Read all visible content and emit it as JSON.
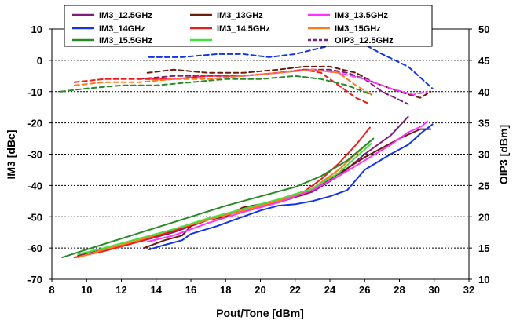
{
  "chart_data": {
    "type": "line",
    "xlabel": "Pout/Tone [dBm]",
    "ylabel": "IM3 [dBc]",
    "y2label": "OIP3 [dBm]",
    "xlim": [
      8,
      32
    ],
    "ylim": [
      -70,
      10
    ],
    "y2lim": [
      10,
      50
    ],
    "grid": true,
    "legend_position": "top",
    "xticks": [
      8,
      10,
      12,
      14,
      16,
      18,
      20,
      22,
      24,
      26,
      28,
      30,
      32
    ],
    "yticks": [
      10,
      0,
      -10,
      -20,
      -30,
      -40,
      -50,
      -60,
      -70
    ],
    "y2ticks": [
      50,
      45,
      40,
      35,
      30,
      25,
      20,
      15,
      10
    ],
    "legend": [
      {
        "label": "IM3_12.5GHz",
        "color": "#7b1f7b",
        "dashed": false
      },
      {
        "label": "IM3_13GHz",
        "color": "#6b1e0e",
        "dashed": false
      },
      {
        "label": "IM3_13.5GHz",
        "color": "#ff33ff",
        "dashed": false
      },
      {
        "label": "IM3_14GHz",
        "color": "#1434e6",
        "dashed": false
      },
      {
        "label": "IM3_14.5GHz",
        "color": "#ee1c1c",
        "dashed": false
      },
      {
        "label": "IM3_15GHz",
        "color": "#ff7b1c",
        "dashed": false
      },
      {
        "label": "IM3_15.5GHz",
        "color": "#2a8a2a",
        "dashed": false
      },
      {
        "label": "",
        "color": "#44e044",
        "dashed": false
      },
      {
        "label": "OIP3_12.5GHz",
        "color": "#7b1f7b",
        "dashed": true
      }
    ],
    "series": [
      {
        "name": "IM3_12.5GHz",
        "axis": "left",
        "dashed": false,
        "color": "#7b1f7b",
        "points": [
          [
            9.5,
            -62.5
          ],
          [
            11,
            -60.5
          ],
          [
            13,
            -58
          ],
          [
            15,
            -55
          ],
          [
            17,
            -51
          ],
          [
            19,
            -48
          ],
          [
            21,
            -45.5
          ],
          [
            23,
            -42
          ],
          [
            24.5,
            -37
          ],
          [
            26,
            -30
          ],
          [
            27.5,
            -24
          ],
          [
            28.5,
            -18
          ]
        ]
      },
      {
        "name": "IM3_13GHz",
        "axis": "left",
        "dashed": false,
        "color": "#6b1e0e",
        "points": [
          [
            13.3,
            -60
          ],
          [
            14.5,
            -57.5
          ],
          [
            15.5,
            -56
          ],
          [
            16,
            -53
          ],
          [
            17,
            -51
          ],
          [
            18,
            -50
          ],
          [
            19,
            -47
          ],
          [
            21,
            -45
          ],
          [
            22.5,
            -43
          ],
          [
            24,
            -38
          ],
          [
            26,
            -31
          ],
          [
            28,
            -25
          ],
          [
            29.2,
            -22
          ],
          [
            29.8,
            -22
          ]
        ]
      },
      {
        "name": "IM3_13.5GHz",
        "axis": "left",
        "dashed": false,
        "color": "#ff33ff",
        "points": [
          [
            13.5,
            -58
          ],
          [
            15,
            -56
          ],
          [
            17,
            -52
          ],
          [
            19,
            -48.5
          ],
          [
            21,
            -45.5
          ],
          [
            23,
            -41.5
          ],
          [
            24.5,
            -37
          ],
          [
            26,
            -32
          ],
          [
            27.5,
            -27
          ],
          [
            28.5,
            -23
          ],
          [
            29.3,
            -21
          ],
          [
            29.6,
            -19.5
          ]
        ]
      },
      {
        "name": "IM3_14GHz",
        "axis": "left",
        "dashed": false,
        "color": "#1434e6",
        "points": [
          [
            13.6,
            -60.5
          ],
          [
            14.5,
            -59
          ],
          [
            15.5,
            -57.5
          ],
          [
            16,
            -55.5
          ],
          [
            17.5,
            -53
          ],
          [
            18.5,
            -51
          ],
          [
            20,
            -48
          ],
          [
            21,
            -46.5
          ],
          [
            22,
            -46
          ],
          [
            23,
            -45
          ],
          [
            24,
            -43.5
          ],
          [
            25,
            -41.5
          ],
          [
            26,
            -35
          ],
          [
            27.5,
            -30
          ],
          [
            28.5,
            -27
          ],
          [
            29.3,
            -23
          ],
          [
            29.9,
            -20.5
          ]
        ]
      },
      {
        "name": "IM3_14.5GHz",
        "axis": "left",
        "dashed": false,
        "color": "#ee1c1c",
        "points": [
          [
            9.3,
            -63
          ],
          [
            11,
            -61
          ],
          [
            13,
            -58
          ],
          [
            15,
            -54.5
          ],
          [
            17,
            -51
          ],
          [
            19,
            -48
          ],
          [
            21,
            -45
          ],
          [
            22.5,
            -42
          ],
          [
            23.5,
            -38
          ],
          [
            24.5,
            -33
          ],
          [
            25.5,
            -27
          ],
          [
            26.3,
            -21.5
          ]
        ]
      },
      {
        "name": "IM3_15GHz",
        "axis": "left",
        "dashed": false,
        "color": "#ff7b1c",
        "points": [
          [
            9.5,
            -63
          ],
          [
            11,
            -60.5
          ],
          [
            13,
            -57.5
          ],
          [
            15,
            -54
          ],
          [
            17,
            -51
          ],
          [
            19,
            -48
          ],
          [
            21,
            -45
          ],
          [
            23,
            -41
          ],
          [
            24.5,
            -35
          ],
          [
            25.5,
            -30
          ],
          [
            26.4,
            -25.5
          ]
        ]
      },
      {
        "name": "IM3_15.5GHz",
        "axis": "left",
        "dashed": false,
        "color": "#2a8a2a",
        "points": [
          [
            8.6,
            -63
          ],
          [
            10,
            -60.5
          ],
          [
            12,
            -57
          ],
          [
            14,
            -53.5
          ],
          [
            16,
            -50
          ],
          [
            18,
            -46.5
          ],
          [
            20,
            -43.5
          ],
          [
            22,
            -40.5
          ],
          [
            23.5,
            -37
          ],
          [
            25,
            -32
          ],
          [
            26.5,
            -25
          ]
        ]
      },
      {
        "name": "",
        "axis": "left",
        "dashed": false,
        "color": "#44e044",
        "points": [
          [
            9.5,
            -62
          ],
          [
            11,
            -60
          ],
          [
            13,
            -57
          ],
          [
            15,
            -54
          ],
          [
            17,
            -50.5
          ],
          [
            19,
            -47.5
          ],
          [
            21,
            -44.5
          ],
          [
            23,
            -41
          ],
          [
            24.5,
            -36
          ],
          [
            25.5,
            -31
          ],
          [
            26.4,
            -26.5
          ]
        ]
      },
      {
        "name": "OIP3_12.5GHz",
        "axis": "right",
        "dashed": true,
        "color": "#7b1f7b",
        "points": [
          [
            13,
            42
          ],
          [
            15,
            42.5
          ],
          [
            17,
            42.5
          ],
          [
            19,
            42.5
          ],
          [
            21,
            43
          ],
          [
            22.5,
            43.5
          ],
          [
            24,
            43.5
          ],
          [
            25,
            43
          ],
          [
            26,
            42
          ],
          [
            27,
            40
          ],
          [
            28.5,
            38
          ]
        ]
      },
      {
        "name": "",
        "axis": "right",
        "dashed": true,
        "color": "#6b1e0e",
        "points": [
          [
            13.5,
            43
          ],
          [
            15,
            43.5
          ],
          [
            17,
            43
          ],
          [
            19,
            43
          ],
          [
            21,
            43.5
          ],
          [
            22.5,
            44
          ],
          [
            24,
            44
          ],
          [
            25.5,
            43
          ],
          [
            26.5,
            41.5
          ],
          [
            28,
            40
          ],
          [
            29.2,
            39
          ],
          [
            29.8,
            40
          ]
        ]
      },
      {
        "name": "",
        "axis": "right",
        "dashed": true,
        "color": "#ff33ff",
        "points": [
          [
            13.5,
            42
          ],
          [
            15,
            42
          ],
          [
            17,
            42.5
          ],
          [
            19,
            42.5
          ],
          [
            21,
            43
          ],
          [
            23,
            43.5
          ],
          [
            24.5,
            43
          ],
          [
            26,
            42
          ],
          [
            27.5,
            40.5
          ],
          [
            28.8,
            39.5
          ],
          [
            29.6,
            40
          ]
        ]
      },
      {
        "name": "",
        "axis": "right",
        "dashed": true,
        "color": "#1434e6",
        "points": [
          [
            13.6,
            45.5
          ],
          [
            15.5,
            45.5
          ],
          [
            17.5,
            46
          ],
          [
            19,
            46
          ],
          [
            20.5,
            45.5
          ],
          [
            22,
            46
          ],
          [
            23.5,
            47
          ],
          [
            25,
            48
          ],
          [
            26,
            47.5
          ],
          [
            27,
            46
          ],
          [
            28.5,
            44
          ],
          [
            29.3,
            42
          ],
          [
            29.9,
            40.5
          ]
        ]
      },
      {
        "name": "",
        "axis": "right",
        "dashed": true,
        "color": "#ee1c1c",
        "points": [
          [
            9.3,
            41.5
          ],
          [
            11,
            42
          ],
          [
            13,
            42
          ],
          [
            15,
            42
          ],
          [
            17,
            42.5
          ],
          [
            19,
            42.5
          ],
          [
            21,
            43
          ],
          [
            22.5,
            43.5
          ],
          [
            23.5,
            43
          ],
          [
            24.5,
            41
          ],
          [
            25.5,
            39
          ],
          [
            26.3,
            38
          ]
        ]
      },
      {
        "name": "",
        "axis": "right",
        "dashed": true,
        "color": "#ff7b1c",
        "points": [
          [
            9.3,
            41
          ],
          [
            11,
            41.5
          ],
          [
            13,
            41.5
          ],
          [
            15,
            42
          ],
          [
            17,
            42
          ],
          [
            19,
            42.5
          ],
          [
            21,
            43
          ],
          [
            23,
            43.5
          ],
          [
            24.5,
            43
          ],
          [
            25.5,
            41
          ],
          [
            26.4,
            39.5
          ]
        ]
      },
      {
        "name": "",
        "axis": "right",
        "dashed": true,
        "color": "#2a8a2a",
        "points": [
          [
            8.5,
            40
          ],
          [
            10,
            40.5
          ],
          [
            12,
            41
          ],
          [
            14,
            41
          ],
          [
            16,
            41.5
          ],
          [
            18,
            42
          ],
          [
            20,
            42
          ],
          [
            22,
            42.5
          ],
          [
            23.5,
            42
          ],
          [
            25,
            41
          ],
          [
            26.4,
            39.5
          ]
        ]
      }
    ]
  }
}
